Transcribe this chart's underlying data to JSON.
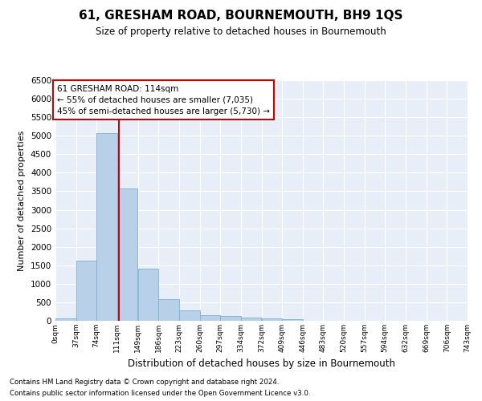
{
  "title": "61, GRESHAM ROAD, BOURNEMOUTH, BH9 1QS",
  "subtitle": "Size of property relative to detached houses in Bournemouth",
  "xlabel": "Distribution of detached houses by size in Bournemouth",
  "ylabel": "Number of detached properties",
  "footnote1": "Contains HM Land Registry data © Crown copyright and database right 2024.",
  "footnote2": "Contains public sector information licensed under the Open Government Licence v3.0.",
  "annotation_line1": "61 GRESHAM ROAD: 114sqm",
  "annotation_line2": "← 55% of detached houses are smaller (7,035)",
  "annotation_line3": "45% of semi-detached houses are larger (5,730) →",
  "property_size": 114,
  "bar_color": "#b8d0e8",
  "bar_edge_color": "#7aafd4",
  "vline_color": "#cc0000",
  "annotation_box_edge_color": "#cc0000",
  "annotation_box_face_color": "#ffffff",
  "background_color": "#e8eef8",
  "grid_color": "#ffffff",
  "bin_edges": [
    0,
    37,
    74,
    111,
    149,
    186,
    223,
    260,
    297,
    334,
    372,
    409,
    446,
    483,
    520,
    557,
    594,
    632,
    669,
    706,
    743
  ],
  "bin_labels": [
    "0sqm",
    "37sqm",
    "74sqm",
    "111sqm",
    "149sqm",
    "186sqm",
    "223sqm",
    "260sqm",
    "297sqm",
    "334sqm",
    "372sqm",
    "409sqm",
    "446sqm",
    "483sqm",
    "520sqm",
    "557sqm",
    "594sqm",
    "632sqm",
    "669sqm",
    "706sqm",
    "743sqm"
  ],
  "bar_heights": [
    75,
    1625,
    5075,
    3575,
    1400,
    590,
    290,
    150,
    120,
    80,
    75,
    50,
    0,
    0,
    0,
    0,
    0,
    0,
    0,
    0
  ],
  "ylim": [
    0,
    6500
  ],
  "yticks": [
    0,
    500,
    1000,
    1500,
    2000,
    2500,
    3000,
    3500,
    4000,
    4500,
    5000,
    5500,
    6000,
    6500
  ]
}
